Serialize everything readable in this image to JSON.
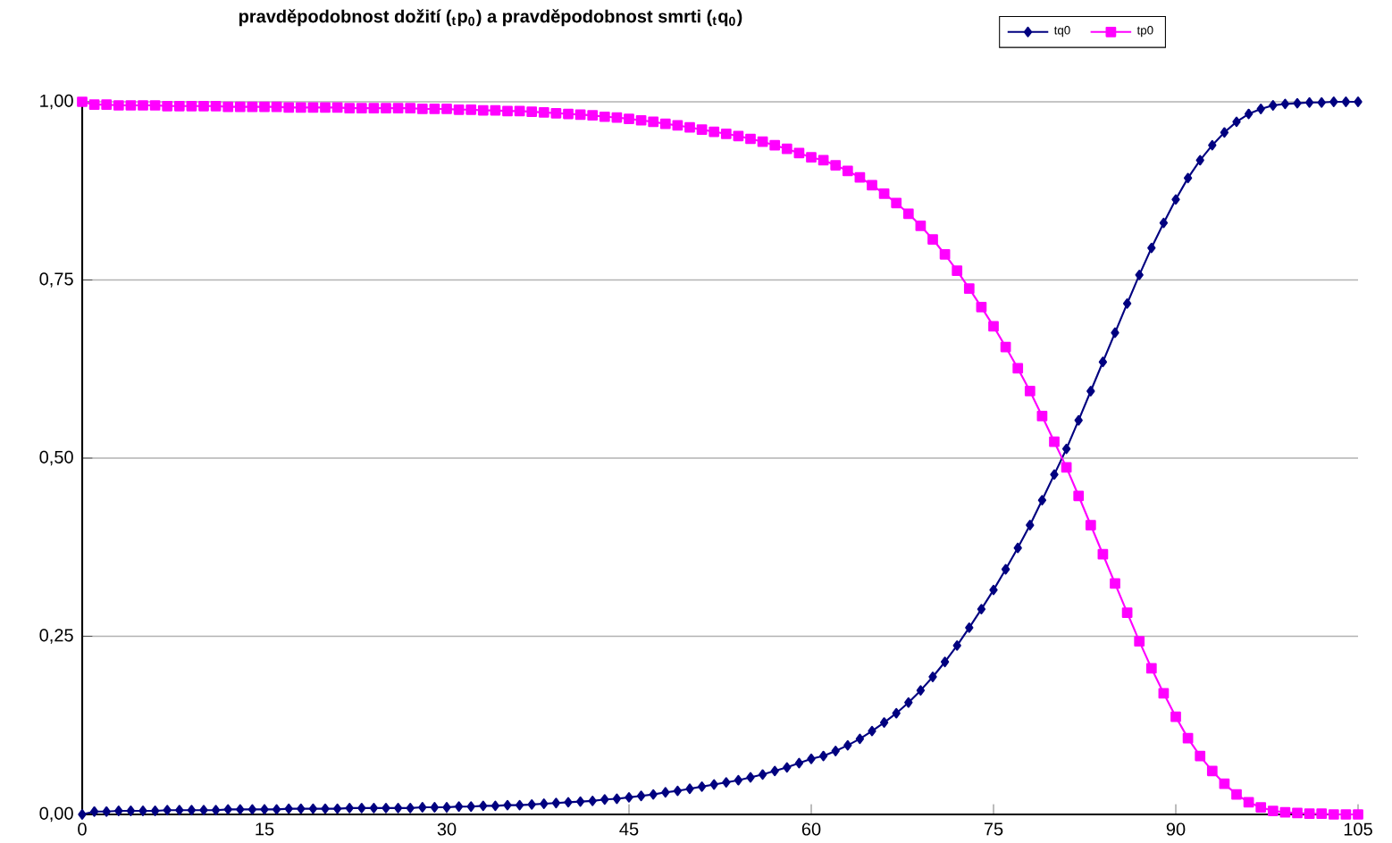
{
  "chart_data": {
    "type": "line",
    "title": "pravděpodobnost dožití ($_{t}$p$_{0}$) a pravděpodobnost smrti ($_{t}$q$_{0}$)",
    "x": [
      0,
      1,
      2,
      3,
      4,
      5,
      6,
      7,
      8,
      9,
      10,
      11,
      12,
      13,
      14,
      15,
      16,
      17,
      18,
      19,
      20,
      21,
      22,
      23,
      24,
      25,
      26,
      27,
      28,
      29,
      30,
      31,
      32,
      33,
      34,
      35,
      36,
      37,
      38,
      39,
      40,
      41,
      42,
      43,
      44,
      45,
      46,
      47,
      48,
      49,
      50,
      51,
      52,
      53,
      54,
      55,
      56,
      57,
      58,
      59,
      60,
      61,
      62,
      63,
      64,
      65,
      66,
      67,
      68,
      69,
      70,
      71,
      72,
      73,
      74,
      75,
      76,
      77,
      78,
      79,
      80,
      81,
      82,
      83,
      84,
      85,
      86,
      87,
      88,
      89,
      90,
      91,
      92,
      93,
      94,
      95,
      96,
      97,
      98,
      99,
      100,
      101,
      102,
      103,
      104,
      105
    ],
    "series": [
      {
        "name": "tq0",
        "color": "#000080",
        "marker": "diamond",
        "values": [
          0.0,
          0.004,
          0.004,
          0.005,
          0.005,
          0.005,
          0.005,
          0.006,
          0.006,
          0.006,
          0.006,
          0.006,
          0.007,
          0.007,
          0.007,
          0.007,
          0.007,
          0.008,
          0.008,
          0.008,
          0.008,
          0.008,
          0.009,
          0.009,
          0.009,
          0.009,
          0.009,
          0.009,
          0.01,
          0.01,
          0.01,
          0.011,
          0.011,
          0.012,
          0.012,
          0.013,
          0.013,
          0.014,
          0.015,
          0.016,
          0.017,
          0.018,
          0.019,
          0.021,
          0.022,
          0.024,
          0.026,
          0.028,
          0.031,
          0.033,
          0.036,
          0.039,
          0.042,
          0.045,
          0.048,
          0.052,
          0.056,
          0.061,
          0.066,
          0.072,
          0.078,
          0.082,
          0.089,
          0.097,
          0.106,
          0.117,
          0.129,
          0.142,
          0.157,
          0.174,
          0.193,
          0.214,
          0.237,
          0.262,
          0.288,
          0.315,
          0.344,
          0.374,
          0.406,
          0.441,
          0.477,
          0.513,
          0.553,
          0.594,
          0.635,
          0.676,
          0.717,
          0.757,
          0.795,
          0.83,
          0.863,
          0.893,
          0.918,
          0.939,
          0.957,
          0.972,
          0.983,
          0.99,
          0.995,
          0.997,
          0.998,
          0.999,
          0.999,
          1.0,
          1.0,
          1.0
        ]
      },
      {
        "name": "tp0",
        "color": "#ff00ff",
        "marker": "square",
        "values": [
          1.0,
          0.996,
          0.996,
          0.995,
          0.995,
          0.995,
          0.995,
          0.994,
          0.994,
          0.994,
          0.994,
          0.994,
          0.993,
          0.993,
          0.993,
          0.993,
          0.993,
          0.992,
          0.992,
          0.992,
          0.992,
          0.992,
          0.991,
          0.991,
          0.991,
          0.991,
          0.991,
          0.991,
          0.99,
          0.99,
          0.99,
          0.989,
          0.989,
          0.988,
          0.988,
          0.987,
          0.987,
          0.986,
          0.985,
          0.984,
          0.983,
          0.982,
          0.981,
          0.979,
          0.978,
          0.976,
          0.974,
          0.972,
          0.969,
          0.967,
          0.964,
          0.961,
          0.958,
          0.955,
          0.952,
          0.948,
          0.944,
          0.939,
          0.934,
          0.928,
          0.922,
          0.918,
          0.911,
          0.903,
          0.894,
          0.883,
          0.871,
          0.858,
          0.843,
          0.826,
          0.807,
          0.786,
          0.763,
          0.738,
          0.712,
          0.685,
          0.656,
          0.626,
          0.594,
          0.559,
          0.523,
          0.487,
          0.447,
          0.406,
          0.365,
          0.324,
          0.283,
          0.243,
          0.205,
          0.17,
          0.137,
          0.107,
          0.082,
          0.061,
          0.043,
          0.028,
          0.017,
          0.01,
          0.005,
          0.003,
          0.002,
          0.001,
          0.001,
          0.0,
          0.0,
          0.0
        ]
      }
    ],
    "xlim": [
      0,
      105
    ],
    "xticks": [
      0,
      15,
      30,
      45,
      60,
      75,
      90,
      105
    ],
    "ylim": [
      0,
      1
    ],
    "yticks": [
      {
        "value": 0,
        "label": "0,00"
      },
      {
        "value": 0.25,
        "label": "0,25"
      },
      {
        "value": 0.5,
        "label": "0,50"
      },
      {
        "value": 0.75,
        "label": "0,75"
      },
      {
        "value": 1,
        "label": "1,00"
      }
    ],
    "grid": "y",
    "legend": "top right",
    "line_style": "solid"
  }
}
